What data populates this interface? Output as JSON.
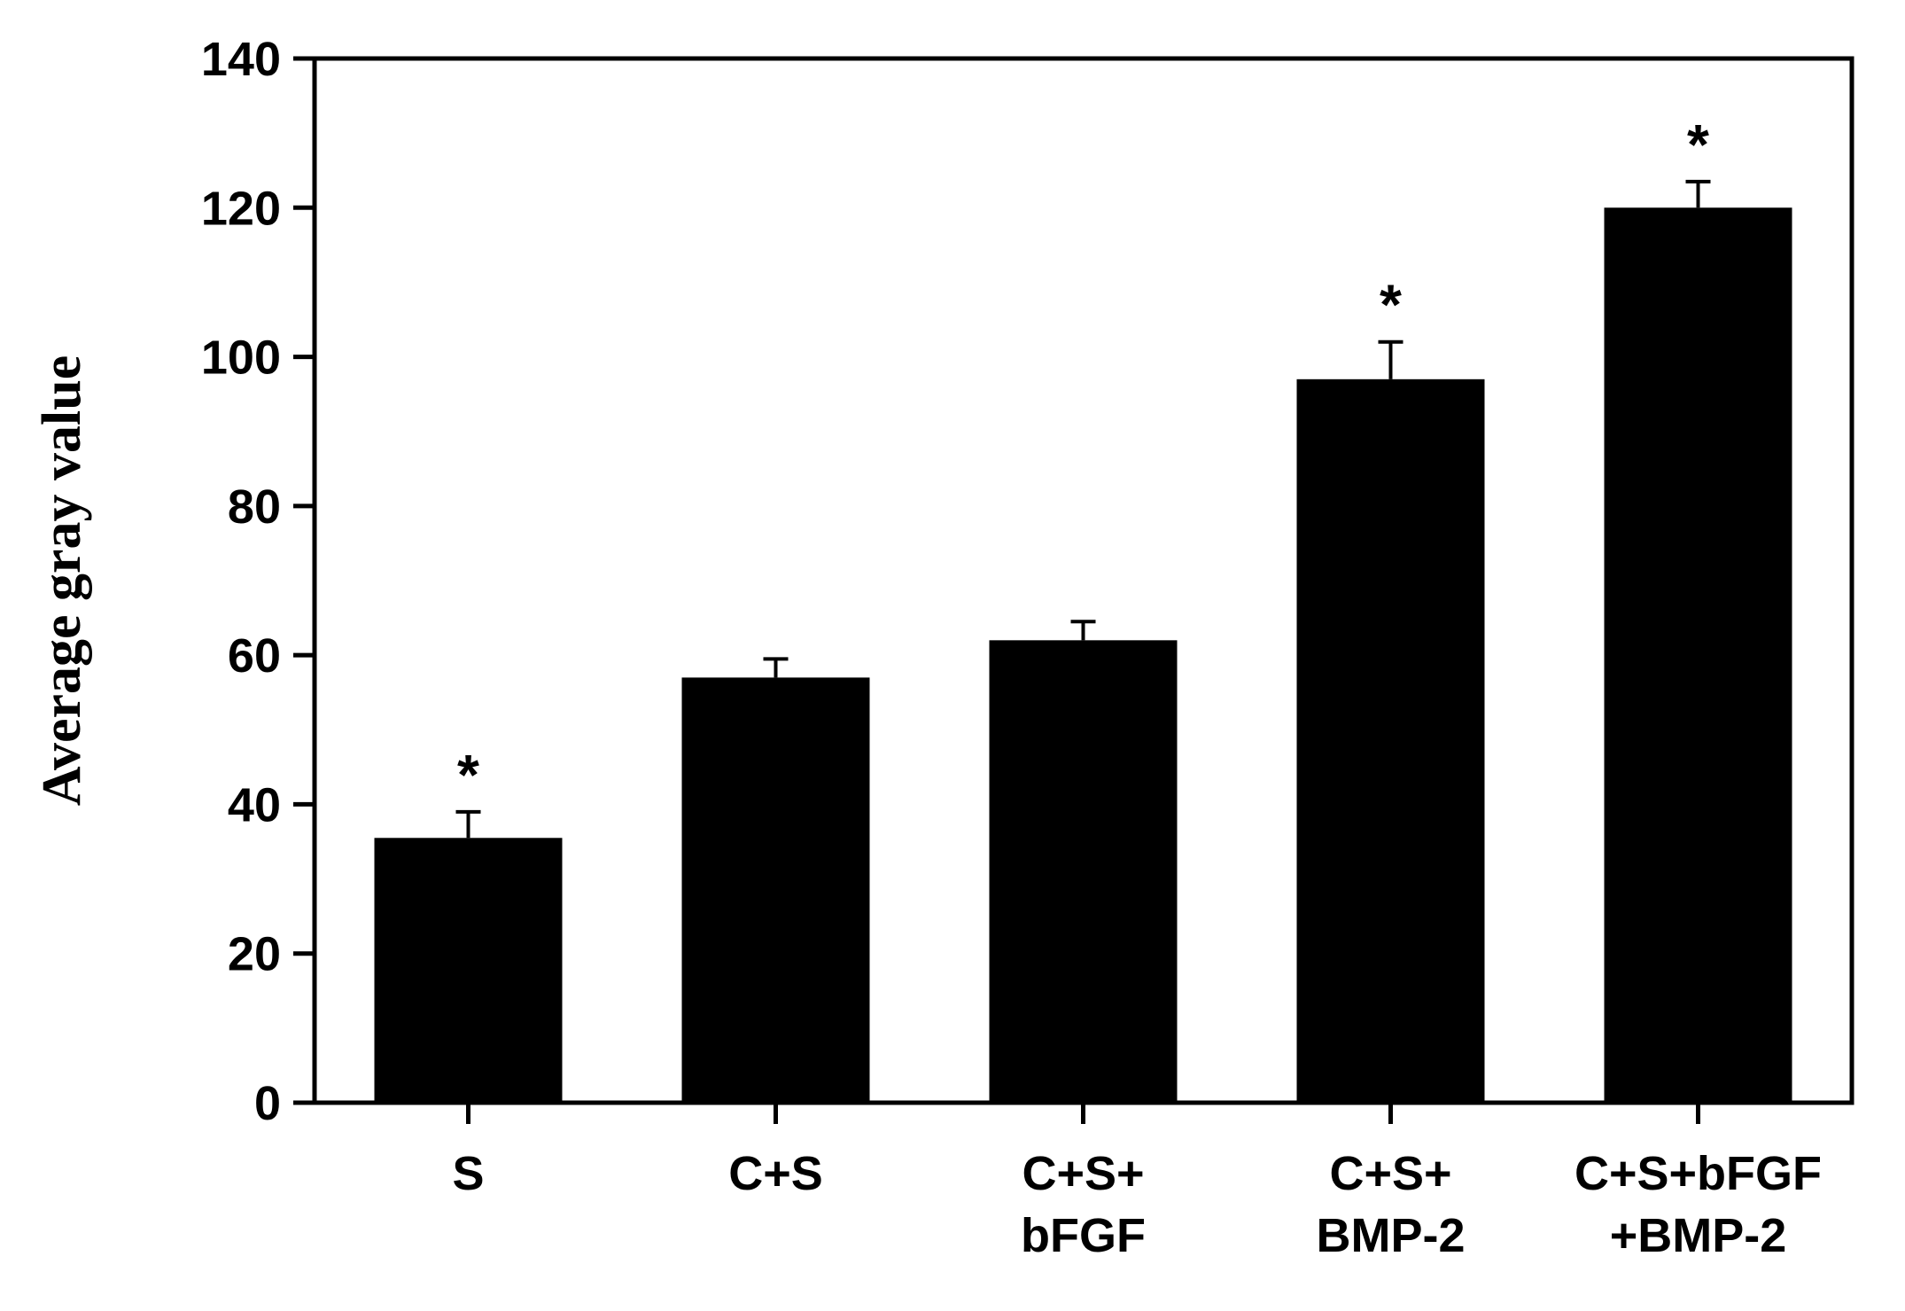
{
  "chart_data": {
    "type": "bar",
    "categories": [
      [
        "S"
      ],
      [
        "C+S"
      ],
      [
        "C+S+",
        "bFGF"
      ],
      [
        "C+S+",
        "BMP-2"
      ],
      [
        "C+S+bFGF",
        "+BMP-2"
      ]
    ],
    "values": [
      35.5,
      57,
      62,
      97,
      120
    ],
    "errors": [
      3.5,
      2.5,
      2.5,
      5,
      3.5
    ],
    "annotations": [
      "*",
      "",
      "",
      "*",
      "*"
    ],
    "title": "",
    "xlabel": "",
    "ylabel": "Average gray value",
    "ylim": [
      0,
      140
    ],
    "yticks": [
      0,
      20,
      40,
      60,
      80,
      100,
      120,
      140
    ],
    "grid": false,
    "colors": {
      "bar": "#000000",
      "axis": "#000000"
    }
  }
}
